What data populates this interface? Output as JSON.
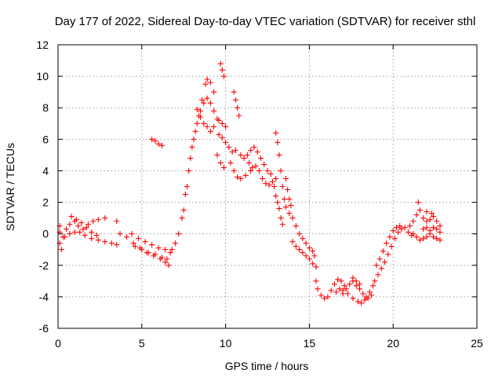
{
  "chart_data": {
    "type": "scatter",
    "title": "Day 177 of 2022, Sidereal Day-to-day VTEC variation (SDTVAR) for receiver sthl",
    "xlabel": "GPS time / hours",
    "ylabel": "SDTVAR / TECUs",
    "xlim": [
      0,
      25
    ],
    "ylim": [
      -6,
      12
    ],
    "xticks": [
      0,
      5,
      10,
      15,
      20,
      25
    ],
    "yticks": [
      -6,
      -4,
      -2,
      0,
      2,
      4,
      6,
      8,
      10,
      12
    ],
    "grid": true,
    "marker": "+",
    "color": "#ff0000",
    "series": [
      {
        "name": "SDTVAR",
        "points": [
          [
            0.1,
            0.1
          ],
          [
            0.3,
            -0.2
          ],
          [
            0.5,
            0.3
          ],
          [
            0.7,
            0.6
          ],
          [
            0.8,
            1.1
          ],
          [
            1.0,
            0.8
          ],
          [
            1.2,
            0.5
          ],
          [
            1.5,
            0.3
          ],
          [
            1.8,
            0.6
          ],
          [
            2.1,
            0.8
          ],
          [
            2.4,
            0.9
          ],
          [
            2.8,
            1.0
          ],
          [
            0.1,
            -0.6
          ],
          [
            0.4,
            -0.2
          ],
          [
            0.7,
            0.0
          ],
          [
            1.0,
            0.1
          ],
          [
            1.3,
            0.1
          ],
          [
            1.6,
            -0.1
          ],
          [
            2.0,
            -0.3
          ],
          [
            2.4,
            -0.4
          ],
          [
            2.8,
            -0.5
          ],
          [
            3.2,
            -0.6
          ],
          [
            3.5,
            -0.7
          ],
          [
            0.2,
            -1.0
          ],
          [
            0.1,
            0.5
          ],
          [
            1.1,
            0.9
          ],
          [
            1.4,
            0.7
          ],
          [
            1.7,
            0.4
          ],
          [
            2.0,
            0.1
          ],
          [
            2.3,
            -0.1
          ],
          [
            3.5,
            0.8
          ],
          [
            3.7,
            0.0
          ],
          [
            4.1,
            -0.2
          ],
          [
            4.5,
            -0.6
          ],
          [
            4.9,
            -0.9
          ],
          [
            5.3,
            -1.2
          ],
          [
            5.7,
            -1.4
          ],
          [
            6.1,
            -1.6
          ],
          [
            6.4,
            -1.8
          ],
          [
            6.6,
            -2.0
          ],
          [
            4.4,
            0.0
          ],
          [
            4.8,
            -0.3
          ],
          [
            5.2,
            -0.5
          ],
          [
            5.6,
            -0.7
          ],
          [
            6.0,
            -0.9
          ],
          [
            6.4,
            -1.0
          ],
          [
            6.7,
            -1.2
          ],
          [
            4.6,
            -0.8
          ],
          [
            5.0,
            -1.0
          ],
          [
            5.4,
            -1.2
          ],
          [
            5.8,
            -1.3
          ],
          [
            6.2,
            -1.5
          ],
          [
            6.5,
            -1.6
          ],
          [
            5.6,
            6.0
          ],
          [
            5.8,
            5.9
          ],
          [
            6.0,
            5.7
          ],
          [
            6.2,
            5.6
          ],
          [
            6.8,
            -1.0
          ],
          [
            7.0,
            -0.6
          ],
          [
            7.2,
            0.0
          ],
          [
            7.4,
            1.0
          ],
          [
            7.6,
            2.5
          ],
          [
            7.8,
            4.0
          ],
          [
            8.0,
            5.5
          ],
          [
            8.2,
            6.5
          ],
          [
            8.4,
            7.5
          ],
          [
            8.6,
            8.5
          ],
          [
            8.8,
            9.5
          ],
          [
            8.9,
            9.8
          ],
          [
            9.1,
            9.6
          ],
          [
            9.3,
            9.0
          ],
          [
            7.5,
            1.5
          ],
          [
            7.7,
            3.0
          ],
          [
            7.9,
            4.8
          ],
          [
            8.1,
            6.0
          ],
          [
            8.3,
            7.0
          ],
          [
            8.5,
            7.8
          ],
          [
            8.7,
            8.3
          ],
          [
            8.9,
            8.6
          ],
          [
            9.1,
            8.3
          ],
          [
            9.3,
            7.8
          ],
          [
            9.5,
            7.3
          ],
          [
            8.3,
            7.9
          ],
          [
            8.5,
            7.4
          ],
          [
            8.7,
            7.0
          ],
          [
            8.9,
            6.8
          ],
          [
            9.1,
            6.5
          ],
          [
            9.3,
            6.8
          ],
          [
            9.6,
            7.2
          ],
          [
            9.8,
            7.0
          ],
          [
            10.0,
            6.8
          ],
          [
            9.6,
            6.3
          ],
          [
            9.8,
            6.1
          ],
          [
            10.0,
            5.8
          ],
          [
            10.2,
            5.5
          ],
          [
            10.4,
            5.2
          ],
          [
            10.6,
            5.3
          ],
          [
            10.9,
            5.0
          ],
          [
            11.1,
            4.8
          ],
          [
            11.4,
            4.5
          ],
          [
            11.6,
            4.2
          ],
          [
            9.7,
            10.8
          ],
          [
            9.8,
            10.4
          ],
          [
            9.9,
            10.0
          ],
          [
            10.5,
            9.0
          ],
          [
            10.6,
            8.5
          ],
          [
            10.7,
            8.0
          ],
          [
            10.8,
            7.5
          ],
          [
            10.3,
            4.5
          ],
          [
            10.5,
            4.0
          ],
          [
            10.7,
            3.6
          ],
          [
            10.9,
            3.5
          ],
          [
            11.2,
            3.7
          ],
          [
            11.5,
            4.0
          ],
          [
            11.8,
            4.3
          ],
          [
            12.0,
            4.0
          ],
          [
            12.2,
            3.5
          ],
          [
            12.4,
            3.2
          ],
          [
            12.6,
            3.1
          ],
          [
            12.8,
            3.3
          ],
          [
            13.0,
            3.5
          ],
          [
            11.3,
            5.0
          ],
          [
            11.5,
            5.3
          ],
          [
            11.7,
            5.5
          ],
          [
            11.9,
            5.2
          ],
          [
            12.1,
            4.8
          ],
          [
            12.3,
            4.4
          ],
          [
            12.5,
            4.0
          ],
          [
            12.7,
            3.8
          ],
          [
            9.5,
            5.0
          ],
          [
            9.7,
            4.5
          ],
          [
            9.9,
            4.2
          ],
          [
            13.0,
            6.4
          ],
          [
            13.1,
            5.8
          ],
          [
            13.2,
            5.0
          ],
          [
            13.3,
            4.0
          ],
          [
            13.4,
            3.0
          ],
          [
            13.5,
            2.2
          ],
          [
            13.6,
            1.7
          ],
          [
            13.8,
            1.3
          ],
          [
            12.9,
            3.0
          ],
          [
            13.0,
            2.4
          ],
          [
            13.1,
            2.0
          ],
          [
            13.2,
            1.6
          ],
          [
            13.3,
            1.0
          ],
          [
            13.4,
            0.6
          ],
          [
            13.6,
            3.5
          ],
          [
            13.7,
            2.8
          ],
          [
            13.8,
            2.2
          ],
          [
            13.9,
            1.8
          ],
          [
            14.0,
            1.0
          ],
          [
            14.2,
            0.5
          ],
          [
            14.4,
            0.0
          ],
          [
            14.6,
            -0.3
          ],
          [
            14.8,
            -0.6
          ],
          [
            15.0,
            -0.9
          ],
          [
            15.2,
            -1.1
          ],
          [
            15.3,
            -1.4
          ],
          [
            14.0,
            -0.5
          ],
          [
            14.2,
            -0.8
          ],
          [
            14.4,
            -1.0
          ],
          [
            14.6,
            -1.2
          ],
          [
            14.8,
            -1.4
          ],
          [
            15.0,
            -1.6
          ],
          [
            15.2,
            -1.9
          ],
          [
            15.4,
            -2.1
          ],
          [
            15.4,
            -3.0
          ],
          [
            15.5,
            -3.5
          ],
          [
            15.7,
            -3.9
          ],
          [
            15.9,
            -4.1
          ],
          [
            16.1,
            -4.0
          ],
          [
            16.3,
            -3.6
          ],
          [
            16.5,
            -3.2
          ],
          [
            16.7,
            -2.9
          ],
          [
            16.9,
            -3.0
          ],
          [
            17.1,
            -3.3
          ],
          [
            17.0,
            -3.8
          ],
          [
            17.2,
            -3.5
          ],
          [
            17.4,
            -3.2
          ],
          [
            17.6,
            -3.0
          ],
          [
            17.8,
            -3.3
          ],
          [
            18.0,
            -3.5
          ],
          [
            18.2,
            -3.8
          ],
          [
            18.4,
            -4.0
          ],
          [
            18.6,
            -3.7
          ],
          [
            18.8,
            -3.3
          ],
          [
            16.6,
            -3.7
          ],
          [
            16.8,
            -3.5
          ],
          [
            17.0,
            -3.6
          ],
          [
            17.3,
            -3.8
          ],
          [
            17.6,
            -4.1
          ],
          [
            17.9,
            -4.3
          ],
          [
            18.1,
            -4.4
          ],
          [
            18.3,
            -4.2
          ],
          [
            18.5,
            -4.1
          ],
          [
            18.7,
            -3.9
          ],
          [
            17.6,
            -2.8
          ],
          [
            17.8,
            -3.0
          ],
          [
            18.0,
            -3.2
          ],
          [
            18.9,
            -3.0
          ],
          [
            19.1,
            -2.6
          ],
          [
            19.3,
            -2.2
          ],
          [
            19.5,
            -1.8
          ],
          [
            19.7,
            -1.3
          ],
          [
            19.9,
            -0.8
          ],
          [
            20.1,
            -0.3
          ],
          [
            20.3,
            0.1
          ],
          [
            20.5,
            0.3
          ],
          [
            20.7,
            0.4
          ],
          [
            20.9,
            0.1
          ],
          [
            21.1,
            -0.1
          ],
          [
            19.0,
            -2.0
          ],
          [
            19.2,
            -1.6
          ],
          [
            19.4,
            -1.1
          ],
          [
            19.6,
            -0.6
          ],
          [
            19.8,
            -0.2
          ],
          [
            20.0,
            0.2
          ],
          [
            20.2,
            0.4
          ],
          [
            20.4,
            0.5
          ],
          [
            21.0,
            0.5
          ],
          [
            21.2,
            0.8
          ],
          [
            21.4,
            1.2
          ],
          [
            21.5,
            2.0
          ],
          [
            21.6,
            1.5
          ],
          [
            21.8,
            1.0
          ],
          [
            22.0,
            0.8
          ],
          [
            22.2,
            0.9
          ],
          [
            22.4,
            1.1
          ],
          [
            22.6,
            0.8
          ],
          [
            22.8,
            0.5
          ],
          [
            21.2,
            0.0
          ],
          [
            21.4,
            -0.2
          ],
          [
            21.6,
            -0.4
          ],
          [
            21.8,
            -0.3
          ],
          [
            22.0,
            -0.2
          ],
          [
            22.2,
            0.0
          ],
          [
            22.4,
            -0.2
          ],
          [
            22.6,
            -0.3
          ],
          [
            22.8,
            -0.4
          ],
          [
            21.8,
            0.3
          ],
          [
            22.0,
            0.4
          ],
          [
            22.2,
            0.2
          ],
          [
            22.4,
            0.4
          ],
          [
            22.6,
            0.3
          ],
          [
            22.8,
            0.1
          ],
          [
            22.0,
            1.4
          ],
          [
            22.3,
            1.3
          ]
        ]
      }
    ]
  }
}
